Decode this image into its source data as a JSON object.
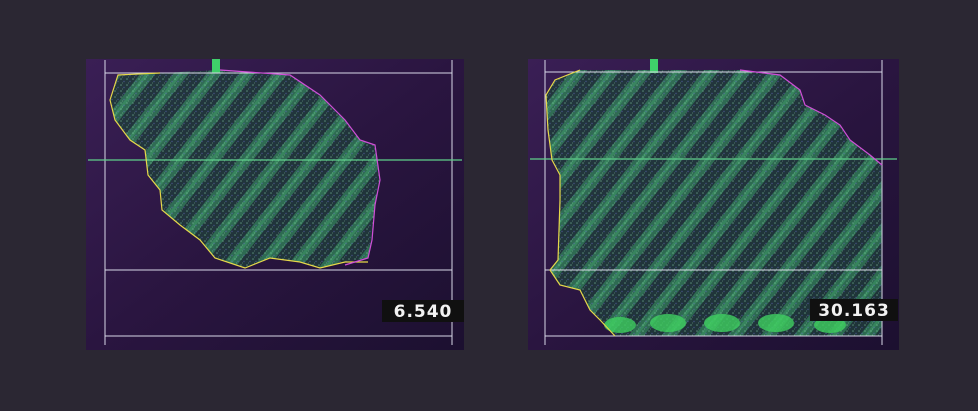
{
  "panels": [
    {
      "label": "6.540"
    },
    {
      "label": "30.163"
    }
  ]
}
